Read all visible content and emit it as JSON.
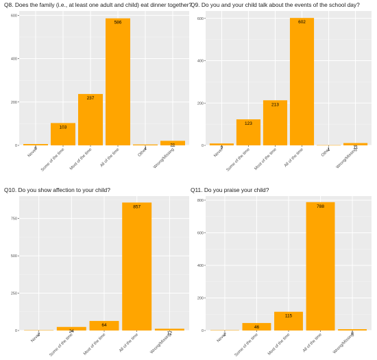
{
  "colors": {
    "bar": "#ffa500",
    "panel_bg": "#ebebeb",
    "grid_major": "#ffffff",
    "text": "#1a1a1a",
    "axis_text": "#4d4d4d"
  },
  "chart_data": [
    {
      "type": "bar",
      "title": "Q8. Does the family (i.e., at least one adult and child) eat dinner together?",
      "categories": [
        "Never",
        "Some of the time",
        "Most of the time",
        "All of the time",
        "Other",
        "Wrong/Missing"
      ],
      "values": [
        6,
        103,
        237,
        586,
        4,
        21
      ],
      "yticks": [
        0,
        200,
        400,
        600
      ],
      "ylim": [
        0,
        620
      ],
      "grid": true
    },
    {
      "type": "bar",
      "title": "Q9. Do you and your child talk about the events of the school day?",
      "categories": [
        "Never",
        "Some of the time",
        "Most of the time",
        "All of the time",
        "Other",
        "Wrong/Missing"
      ],
      "values": [
        9,
        123,
        213,
        602,
        1,
        11
      ],
      "yticks": [
        0,
        200,
        400,
        600
      ],
      "ylim": [
        0,
        635
      ],
      "grid": true
    },
    {
      "type": "bar",
      "title": "Q10. Do you show affection to your child?",
      "categories": [
        "Never",
        "Some of the time",
        "Most of the time",
        "All of the time",
        "Wrong/Missing"
      ],
      "values": [
        2,
        24,
        64,
        857,
        12
      ],
      "yticks": [
        0,
        250,
        500,
        750
      ],
      "ylim": [
        0,
        900
      ],
      "grid": true
    },
    {
      "type": "bar",
      "title": "Q11. Do you praise your child?",
      "categories": [
        "Never",
        "Some of the time",
        "Most of the time",
        "All of the time",
        "Wrong/Missing"
      ],
      "values": [
        2,
        46,
        115,
        788,
        8
      ],
      "yticks": [
        0,
        200,
        400,
        600,
        800
      ],
      "ylim": [
        0,
        825
      ],
      "grid": true
    }
  ]
}
